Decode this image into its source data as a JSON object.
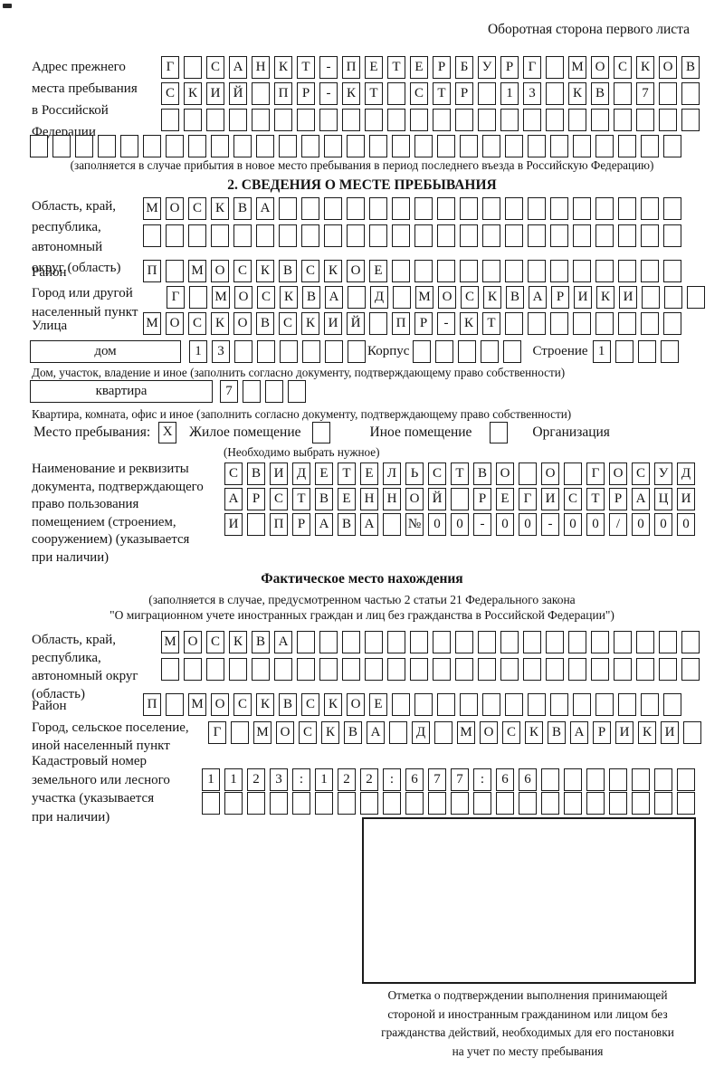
{
  "page": {
    "header_note": "Оборотная сторона первого листа"
  },
  "prev_address": {
    "label_lines": [
      "Адрес прежнего",
      "места пребывания",
      "в Российской",
      "Федерации"
    ],
    "row1": {
      "text": "Г САНКТ-ПЕТЕРБУРГ МОСКОВ",
      "count": 24
    },
    "row2": {
      "text": "СКИЙ ПР-КТ СТР 13 КВ 7",
      "count": 24
    },
    "row3": {
      "text": "",
      "count": 24
    },
    "row4": {
      "text": "",
      "count": 29
    },
    "note": "(заполняется в случае прибытия в новое место пребывания в период последнего въезда в Российскую Федерацию)"
  },
  "section2": {
    "title": "2. СВЕДЕНИЯ О МЕСТЕ ПРЕБЫВАНИЯ",
    "region": {
      "label_lines": [
        "Область, край,",
        "республика,",
        "автономный",
        "округ (область)"
      ],
      "row1": {
        "text": "МОСКВА",
        "count": 24
      },
      "row2": {
        "text": "",
        "count": 24
      }
    },
    "district": {
      "label": "Район",
      "row": {
        "text": "П МОСКВСКОЕ",
        "count": 24
      }
    },
    "city": {
      "label_lines": [
        "Город или другой",
        "населенный пункт"
      ],
      "row": {
        "text": "Г МОСКВА Д МОСКВАРИКИ",
        "count": 24
      }
    },
    "street": {
      "label": "Улица",
      "row": {
        "text": "МОСКОВСКИЙ ПР-КТ",
        "count": 24
      }
    },
    "house": {
      "box_label": "дом",
      "cells": {
        "text": "13",
        "count": 8
      },
      "korpus_label": "Корпус",
      "korpus_cells": {
        "text": "",
        "count": 5
      },
      "stroenie_label": "Строение",
      "stroenie_cells": {
        "text": "1",
        "count": 4
      },
      "caption": "Дом, участок, владение и иное (заполнить согласно документу, подтверждающему право собственности)"
    },
    "apartment": {
      "box_label": "квартира",
      "cells": {
        "text": "7",
        "count": 4
      },
      "caption": "Квартира, комната, офис и иное (заполнить согласно документу, подтверждающему право собственности)"
    },
    "stay_type": {
      "label": "Место пребывания:",
      "options": [
        {
          "mark": "X",
          "label": "Жилое помещение"
        },
        {
          "mark": "",
          "label": "Иное помещение"
        },
        {
          "mark": "",
          "label": "Организация"
        }
      ],
      "note": "(Необходимо выбрать нужное)"
    },
    "document": {
      "label_lines": [
        "Наименование и реквизиты",
        "документа, подтверждающего",
        "право пользования",
        "помещением (строением,",
        "сооружением) (указывается",
        "при наличии)"
      ],
      "row1": {
        "text": "СВИДЕТЕЛЬСТВО О ГОСУД",
        "count": 21
      },
      "row2": {
        "text": "АРСТВЕННОЙ РЕГИСТРАЦИ",
        "count": 21
      },
      "row3": {
        "text": "И ПРАВА №00-00-00/000",
        "count": 21
      }
    }
  },
  "actual_location": {
    "title": "Фактическое место нахождения",
    "note_line1": "(заполняется в случае, предусмотренном частью 2 статьи 21 Федерального закона",
    "note_line2": "\"О миграционном учете иностранных граждан и лиц без гражданства в Российской Федерации\")",
    "region": {
      "label_lines": [
        "Область, край,",
        "республика,",
        "автономный округ",
        "(область)"
      ],
      "row1": {
        "text": "МОСКВА",
        "count": 24
      },
      "row2": {
        "text": "",
        "count": 24
      }
    },
    "district": {
      "label": "Район",
      "row": {
        "text": "П МОСКВСКОЕ",
        "count": 24
      }
    },
    "city": {
      "label_lines": [
        "Город, сельское поселение,",
        "иной населенный пункт"
      ],
      "row": {
        "text": "Г МОСКВА Д МОСКВАРИКИ",
        "count": 22
      }
    },
    "cadastral": {
      "label_lines": [
        "Кадастровый номер",
        "земельного или лесного",
        "участка (указывается",
        "при наличии)"
      ],
      "row1": {
        "text": "1123:122:677:66",
        "count": 22
      },
      "row2": {
        "text": "",
        "count": 22
      }
    },
    "stamp_caption_lines": [
      "Отметка о подтверждении выполнения принимающей",
      "стороной и иностранным гражданином или лицом без",
      "гражданства действий, необходимых для его постановки",
      "на учет по месту пребывания"
    ]
  }
}
